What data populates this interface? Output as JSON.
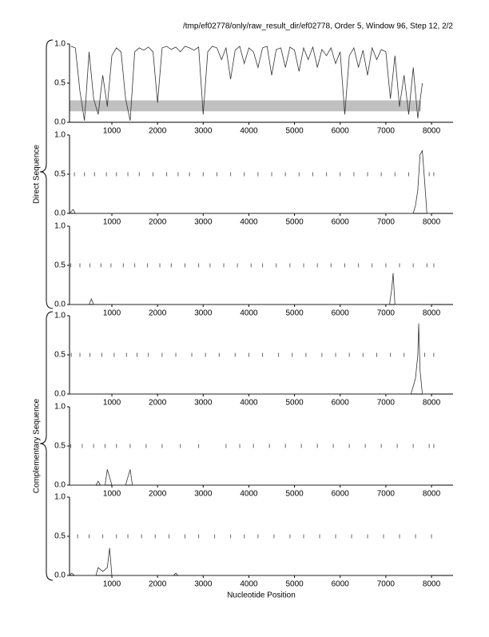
{
  "header": {
    "title": "/tmp/ef02778/only/raw_result_dir/ef02778, Order 5, Window 96, Step 12, 2/2"
  },
  "groups": [
    {
      "label": "Direct Sequence"
    },
    {
      "label": "Complementary Sequence"
    }
  ],
  "chart_data": [
    {
      "type": "line",
      "color": "#333333",
      "xlim": [
        72,
        8472
      ],
      "ylim": [
        0,
        1
      ],
      "xticks": [
        1000,
        2000,
        3000,
        4000,
        5000,
        6000,
        7000,
        8000
      ],
      "yticks": [
        {
          "value": 0,
          "label": "0.0"
        },
        0.5,
        {
          "value": 1,
          "label": "1.0"
        }
      ],
      "band": {
        "xlim": [
          72,
          7770
        ],
        "ylim": [
          0.14,
          0.28
        ],
        "color": "#c0c0c0"
      },
      "x": [
        100,
        200,
        300,
        400,
        500,
        600,
        700,
        800,
        900,
        1000,
        1100,
        1200,
        1300,
        1400,
        1500,
        1600,
        1700,
        1800,
        1900,
        2000,
        2100,
        2200,
        2300,
        2400,
        2500,
        2600,
        2700,
        2800,
        2900,
        3000,
        3100,
        3200,
        3300,
        3400,
        3500,
        3600,
        3700,
        3800,
        3900,
        4000,
        4100,
        4200,
        4300,
        4400,
        4500,
        4600,
        4700,
        4800,
        4900,
        5000,
        5100,
        5200,
        5300,
        5400,
        5500,
        5600,
        5700,
        5800,
        5900,
        6000,
        6100,
        6200,
        6300,
        6400,
        6500,
        6600,
        6700,
        6800,
        6900,
        7000,
        7100,
        7200,
        7300,
        7400,
        7500,
        7600,
        7700,
        7800
      ],
      "values": [
        0.97,
        0.95,
        0.4,
        0.02,
        0.9,
        0.3,
        0.1,
        0.6,
        0.2,
        0.85,
        0.95,
        0.9,
        0.3,
        0.02,
        0.9,
        0.95,
        0.92,
        0.96,
        0.9,
        0.25,
        0.95,
        0.97,
        0.93,
        0.96,
        0.9,
        0.97,
        0.95,
        0.92,
        0.96,
        0.1,
        0.9,
        0.97,
        0.95,
        0.8,
        0.95,
        0.55,
        0.92,
        0.97,
        0.75,
        0.95,
        0.9,
        0.7,
        0.95,
        0.97,
        0.6,
        0.93,
        0.95,
        0.7,
        0.96,
        0.92,
        0.65,
        0.95,
        0.8,
        0.96,
        0.7,
        0.93,
        0.85,
        0.95,
        0.75,
        0.9,
        0.1,
        0.85,
        0.95,
        0.7,
        0.92,
        0.6,
        0.95,
        0.8,
        0.93,
        0.9,
        0.3,
        0.85,
        0.2,
        0.6,
        0.1,
        0.7,
        0.05,
        0.5
      ]
    },
    {
      "type": "line",
      "color": "#333333",
      "xlim": [
        72,
        8472
      ],
      "ylim": [
        0,
        1
      ],
      "xticks": [
        1000,
        2000,
        3000,
        4000,
        5000,
        6000,
        7000,
        8000
      ],
      "yticks": [
        {
          "value": 0,
          "label": "0.0"
        },
        0.5,
        {
          "value": 1,
          "label": "1.0"
        }
      ],
      "x": [
        72,
        150,
        200,
        7600,
        7650,
        7700,
        7750,
        7800,
        7850,
        7900,
        8000
      ],
      "values": [
        0,
        0.05,
        0,
        0,
        0.1,
        0.3,
        0.75,
        0.8,
        0.4,
        0,
        0
      ],
      "marker_level": 0.5,
      "markers": [
        180,
        400,
        620,
        880,
        1100,
        1350,
        1600,
        1900,
        2200,
        2450,
        2700,
        3000,
        3300,
        3600,
        3900,
        4200,
        4500,
        4800,
        5100,
        5400,
        5700,
        6000,
        6300,
        6600,
        6900,
        7200,
        7500,
        7950,
        8050
      ]
    },
    {
      "type": "line",
      "color": "#333333",
      "xlim": [
        72,
        8472
      ],
      "ylim": [
        0,
        1
      ],
      "xticks": [
        1000,
        2000,
        3000,
        4000,
        5000,
        6000,
        7000,
        8000
      ],
      "yticks": [
        {
          "value": 0,
          "label": "0.0"
        },
        0.5,
        {
          "value": 1,
          "label": "1.0"
        }
      ],
      "x": [
        72,
        500,
        550,
        600,
        7080,
        7130,
        7160,
        7200,
        8000
      ],
      "values": [
        0,
        0,
        0.07,
        0,
        0,
        0.2,
        0.4,
        0,
        0
      ],
      "marker_level": 0.5,
      "markers": [
        100,
        300,
        520,
        760,
        980,
        1250,
        1500,
        1780,
        2050,
        2300,
        2600,
        2900,
        3150,
        3450,
        3750,
        4050,
        4300,
        4600,
        4900,
        5200,
        5500,
        5800,
        6100,
        6400,
        6700,
        7000,
        7300,
        7600,
        7900,
        8050
      ]
    },
    {
      "type": "line",
      "color": "#333333",
      "xlim": [
        72,
        8472
      ],
      "ylim": [
        0,
        1
      ],
      "xticks": [
        1000,
        2000,
        3000,
        4000,
        5000,
        6000,
        7000,
        8000
      ],
      "yticks": [
        {
          "value": 0,
          "label": "0.0"
        },
        0.5,
        {
          "value": 1,
          "label": "1.0"
        }
      ],
      "x": [
        72,
        7550,
        7600,
        7650,
        7700,
        7720,
        7750,
        7800,
        8000
      ],
      "values": [
        0,
        0,
        0.1,
        0.2,
        0.5,
        0.9,
        0.3,
        0,
        0
      ],
      "marker_level": 0.5,
      "markers": [
        110,
        300,
        520,
        780,
        1050,
        1320,
        1550,
        1800,
        2100,
        2400,
        2750,
        3050,
        3350,
        3700,
        4000,
        4300,
        4650,
        4950,
        5250,
        5600,
        5900,
        6200,
        6500,
        6800,
        7100,
        7400,
        7850,
        8050
      ]
    },
    {
      "type": "line",
      "color": "#333333",
      "xlim": [
        72,
        8472
      ],
      "ylim": [
        0,
        1
      ],
      "xticks": [
        1000,
        2000,
        3000,
        4000,
        5000,
        6000,
        7000,
        8000
      ],
      "yticks": [
        {
          "value": 0,
          "label": "0.0"
        },
        0.5,
        {
          "value": 1,
          "label": "1.0"
        }
      ],
      "x": [
        72,
        650,
        700,
        750,
        850,
        900,
        950,
        1000,
        1300,
        1350,
        1400,
        1450,
        8000
      ],
      "values": [
        0,
        0,
        0.05,
        0,
        0,
        0.2,
        0.1,
        0,
        0,
        0.1,
        0.2,
        0,
        0
      ],
      "marker_level": 0.5,
      "markers": [
        100,
        350,
        600,
        850,
        1100,
        1400,
        1750,
        2100,
        2500,
        2900,
        3500,
        3800,
        4100,
        4450,
        4800,
        5150,
        5500,
        5850,
        6200,
        6550,
        6900,
        7250,
        7600,
        7950,
        8050
      ]
    },
    {
      "type": "line",
      "color": "#333333",
      "xlim": [
        72,
        8472
      ],
      "ylim": [
        0,
        1
      ],
      "xticks": [
        1000,
        2000,
        3000,
        4000,
        5000,
        6000,
        7000,
        8000
      ],
      "yticks": [
        {
          "value": 0,
          "label": "0.0"
        },
        0.5,
        {
          "value": 1,
          "label": "1.0"
        }
      ],
      "x": [
        72,
        120,
        180,
        650,
        700,
        800,
        900,
        950,
        1000,
        2350,
        2400,
        2450,
        8000
      ],
      "values": [
        0,
        0.03,
        0,
        0,
        0.1,
        0.05,
        0.1,
        0.35,
        0,
        0,
        0.03,
        0,
        0
      ],
      "marker_level": 0.5,
      "markers": [
        250,
        500,
        800,
        1100,
        1350,
        1650,
        1950,
        2250,
        2600,
        2900,
        3250,
        3600,
        3900,
        4200,
        4550,
        4900,
        5200,
        5550,
        5900,
        6250,
        6600,
        6950,
        7300,
        7650,
        8000
      ],
      "xlabel": "Nucleotide Position"
    }
  ]
}
